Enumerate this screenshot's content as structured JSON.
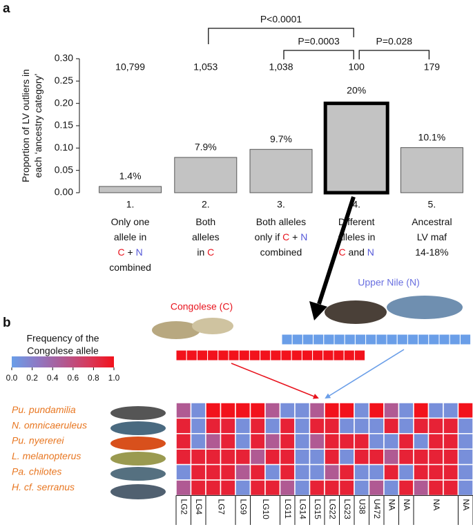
{
  "panels": [
    "a",
    "b"
  ],
  "chart_data": [
    {
      "type": "bar",
      "ylabel": [
        "Proportion of LV outliers in",
        "each ‘ancestry category’"
      ],
      "categories": [
        "1.",
        "2.",
        "3.",
        "4.",
        "5."
      ],
      "descriptions": [
        [
          [
            "Only one"
          ],
          [
            "allele in"
          ],
          [
            "C",
            " + ",
            "N"
          ],
          [
            "combined"
          ]
        ],
        [
          [
            "Both"
          ],
          [
            "alleles"
          ],
          [
            "in ",
            "C"
          ]
        ],
        [
          [
            "Both alleles"
          ],
          [
            "only if ",
            "C",
            " + ",
            "N"
          ],
          [
            "combined"
          ]
        ],
        [
          [
            "Different"
          ],
          [
            "alleles in"
          ],
          [
            "C",
            " and ",
            "N"
          ]
        ],
        [
          [
            "Ancestral"
          ],
          [
            "LV maf"
          ],
          [
            "14-18%"
          ]
        ]
      ],
      "highlight_colors": {
        "C": "#e8141e",
        "N": "#5558d8"
      },
      "values": [
        0.014,
        0.079,
        0.097,
        0.2,
        0.101
      ],
      "value_labels": [
        "1.4%",
        "7.9%",
        "9.7%",
        "20%",
        "10.1%"
      ],
      "count_labels": [
        "10,799",
        "1,053",
        "1,038",
        "100",
        "179"
      ],
      "color": "#c3c3c3",
      "emphasis_index": 3,
      "ylim": [
        0,
        0.3
      ],
      "yticks": [
        {
          "value": 0,
          "label": "0.00"
        },
        {
          "value": 0.05,
          "label": "0.05"
        },
        {
          "value": 0.1,
          "label": "0.10"
        },
        {
          "value": 0.15,
          "label": "0.15"
        },
        {
          "value": 0.2,
          "label": "0.20"
        },
        {
          "value": 0.25,
          "label": "0.25"
        },
        {
          "value": 0.3,
          "label": "0.30"
        }
      ],
      "annotations": [
        {
          "from": 1,
          "to": 3,
          "label": "P<0.0001"
        },
        {
          "from": 2,
          "to": 3,
          "label": "P=0.0003"
        },
        {
          "from": 3,
          "to": 4,
          "label": "P=0.028"
        }
      ]
    },
    {
      "type": "heatmap",
      "sources": [
        {
          "label": "Congolese (C)",
          "color": "#e8141e"
        },
        {
          "label": "Upper Nile (N)",
          "color": "#6a70e0"
        }
      ],
      "colorbar_title": [
        "Frequency of the",
        "Congolese allele"
      ],
      "clim": [
        0,
        1
      ],
      "colorscale": [
        "#6a9ee8",
        "#8e79c4",
        "#b05a93",
        "#d63a5c",
        "#f2121c"
      ],
      "colorbar_ticks": [
        {
          "value": 0,
          "label": "0.0"
        },
        {
          "value": 0.2,
          "label": "0.2"
        },
        {
          "value": 0.4,
          "label": "0.4"
        },
        {
          "value": 0.6,
          "label": "0.6"
        },
        {
          "value": 0.8,
          "label": "0.8"
        },
        {
          "value": 1,
          "label": "1.0"
        }
      ],
      "row_color": "#e87722",
      "rows": [
        "Pu. pundamilia",
        "N. omnicaeruleus",
        "Pu. nyererei",
        "L. melanopterus",
        "Pa. chilotes",
        "H. cf. serranus"
      ],
      "columns": [
        "LG2",
        "LG4",
        "LG7",
        null,
        "LG9",
        "LG10",
        null,
        "LG11",
        "LG14",
        "LG15",
        "LG22",
        "LG23",
        "U38",
        "U472",
        "NA",
        "NA",
        "NA",
        null,
        null,
        "NA"
      ],
      "values": [
        [
          0.5,
          0.1,
          1,
          1,
          1,
          1,
          0.5,
          0.1,
          0.1,
          0.5,
          1,
          1,
          0.1,
          1,
          0.5,
          0.1,
          1,
          0.1,
          0.1,
          1
        ],
        [
          0.9,
          0.1,
          0.9,
          0.9,
          0.1,
          0.9,
          0.1,
          0.9,
          0.1,
          0.9,
          0.9,
          0.1,
          0.1,
          0.1,
          0.9,
          0.1,
          0.9,
          0.9,
          0.9,
          0.1
        ],
        [
          0.9,
          0.1,
          0.5,
          0.9,
          0.1,
          0.9,
          0.5,
          0.9,
          0.1,
          0.5,
          0.9,
          0.9,
          0.9,
          0.1,
          0.1,
          0.9,
          0.1,
          0.9,
          0.9,
          0.1
        ],
        [
          0.9,
          0.9,
          0.9,
          0.9,
          0.9,
          0.5,
          0.9,
          0.9,
          0.1,
          0.1,
          0.9,
          0.1,
          0.9,
          0.9,
          0.5,
          0.9,
          0.9,
          0.9,
          0.9,
          0.1
        ],
        [
          0.1,
          0.9,
          0.9,
          0.9,
          0.5,
          0.9,
          0.1,
          0.9,
          0.1,
          0.1,
          0.5,
          0.9,
          0.1,
          0.1,
          0.9,
          0.1,
          0.9,
          0.9,
          0.9,
          0.1
        ],
        [
          0.5,
          0.9,
          0.9,
          0.9,
          0.1,
          0.9,
          0.9,
          0.5,
          0.1,
          0.9,
          0.9,
          0.9,
          0.1,
          0.5,
          0.1,
          0.9,
          0.5,
          0.9,
          0.9,
          0.1
        ]
      ]
    }
  ]
}
